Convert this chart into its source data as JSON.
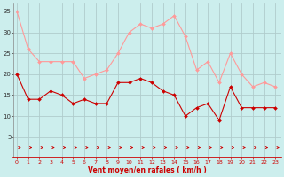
{
  "hours": [
    0,
    1,
    2,
    3,
    4,
    5,
    6,
    7,
    8,
    9,
    10,
    11,
    12,
    13,
    14,
    15,
    16,
    17,
    18,
    19,
    20,
    21,
    22,
    23
  ],
  "vent_moyen": [
    20,
    14,
    14,
    16,
    15,
    13,
    14,
    13,
    13,
    18,
    18,
    19,
    18,
    16,
    15,
    10,
    12,
    13,
    9,
    17,
    12,
    12,
    12,
    12
  ],
  "rafales": [
    35,
    26,
    23,
    23,
    23,
    23,
    19,
    20,
    21,
    25,
    30,
    32,
    31,
    32,
    34,
    29,
    21,
    23,
    18,
    25,
    20,
    17,
    18,
    17
  ],
  "bg_color": "#cceeed",
  "grid_color": "#b0cccc",
  "line_color_moyen": "#cc0000",
  "line_color_rafales": "#ff9999",
  "xlabel": "Vent moyen/en rafales ( km/h )",
  "xlabel_color": "#cc0000",
  "ylim": [
    0,
    37
  ],
  "xlim": [
    -0.3,
    23.5
  ],
  "yticks": [
    5,
    10,
    15,
    20,
    25,
    30,
    35
  ],
  "xticks": [
    0,
    1,
    2,
    3,
    4,
    5,
    6,
    7,
    8,
    9,
    10,
    11,
    12,
    13,
    14,
    15,
    16,
    17,
    18,
    19,
    20,
    21,
    22,
    23
  ]
}
